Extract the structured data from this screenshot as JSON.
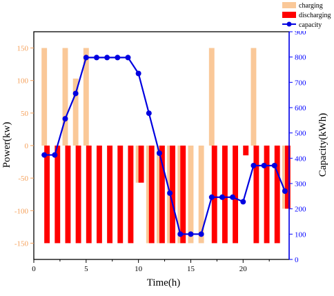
{
  "chart_data": {
    "type": "bar+line",
    "xlabel": "Time(h)",
    "ylabel_left": "Power(kw)",
    "ylabel_right": "Capacity(kWh)",
    "xlim": [
      0,
      24.4
    ],
    "ylim_left": [
      -175,
      175
    ],
    "ylim_right": [
      0,
      900
    ],
    "x_ticks": [
      0,
      5,
      10,
      15,
      20
    ],
    "y_left_ticks": [
      -150,
      -100,
      -50,
      0,
      50,
      100,
      150
    ],
    "y_right_ticks": [
      0,
      100,
      200,
      300,
      400,
      500,
      600,
      700,
      800,
      900
    ],
    "legend_position": "top-right",
    "colors": {
      "charging": "#FAC898",
      "discharging": "#FF0000",
      "capacity": "#0000E0",
      "left_axis": "#F5A05A",
      "right_axis": "#0000FF"
    },
    "series": [
      {
        "name": "charging",
        "type": "bar",
        "hours": [
          1,
          2,
          3,
          4,
          5,
          6,
          7,
          8,
          9,
          10,
          11,
          12,
          13,
          14,
          15,
          16,
          17,
          18,
          19,
          20,
          21,
          22,
          23,
          24
        ],
        "power": [
          150,
          0,
          150,
          103,
          150,
          0,
          0,
          0,
          0,
          -57,
          -150,
          -150,
          -150,
          -150,
          -150,
          -150,
          150,
          0,
          0,
          0,
          150,
          0,
          0,
          -97
        ],
        "comment": "charging bars at 1,3,4,5,17,21 positive; hours 9-16 show tall negative-side bars beneath discharging"
      },
      {
        "name": "discharging",
        "type": "bar",
        "hours": [
          1,
          2,
          3,
          4,
          5,
          6,
          7,
          8,
          9,
          10,
          11,
          12,
          13,
          14,
          15,
          16,
          17,
          18,
          19,
          20,
          21,
          22,
          23,
          24
        ],
        "power": [
          0,
          0,
          0,
          0,
          0,
          0,
          0,
          0,
          0,
          -57,
          -150,
          -150,
          -150,
          -150,
          0,
          0,
          0,
          0,
          0,
          -15,
          0,
          0,
          0,
          -97
        ]
      },
      {
        "name": "capacity",
        "type": "line",
        "hours": [
          1,
          2,
          3,
          4,
          5,
          6,
          7,
          8,
          9,
          10,
          11,
          12,
          13,
          14,
          15,
          16,
          17,
          18,
          19,
          20,
          21,
          22,
          23,
          24
        ],
        "capacity": [
          413,
          413,
          556,
          656,
          798,
          798,
          798,
          798,
          798,
          735,
          578,
          420,
          262,
          100,
          100,
          100,
          246,
          246,
          246,
          228,
          371,
          371,
          371,
          270
        ]
      }
    ]
  }
}
